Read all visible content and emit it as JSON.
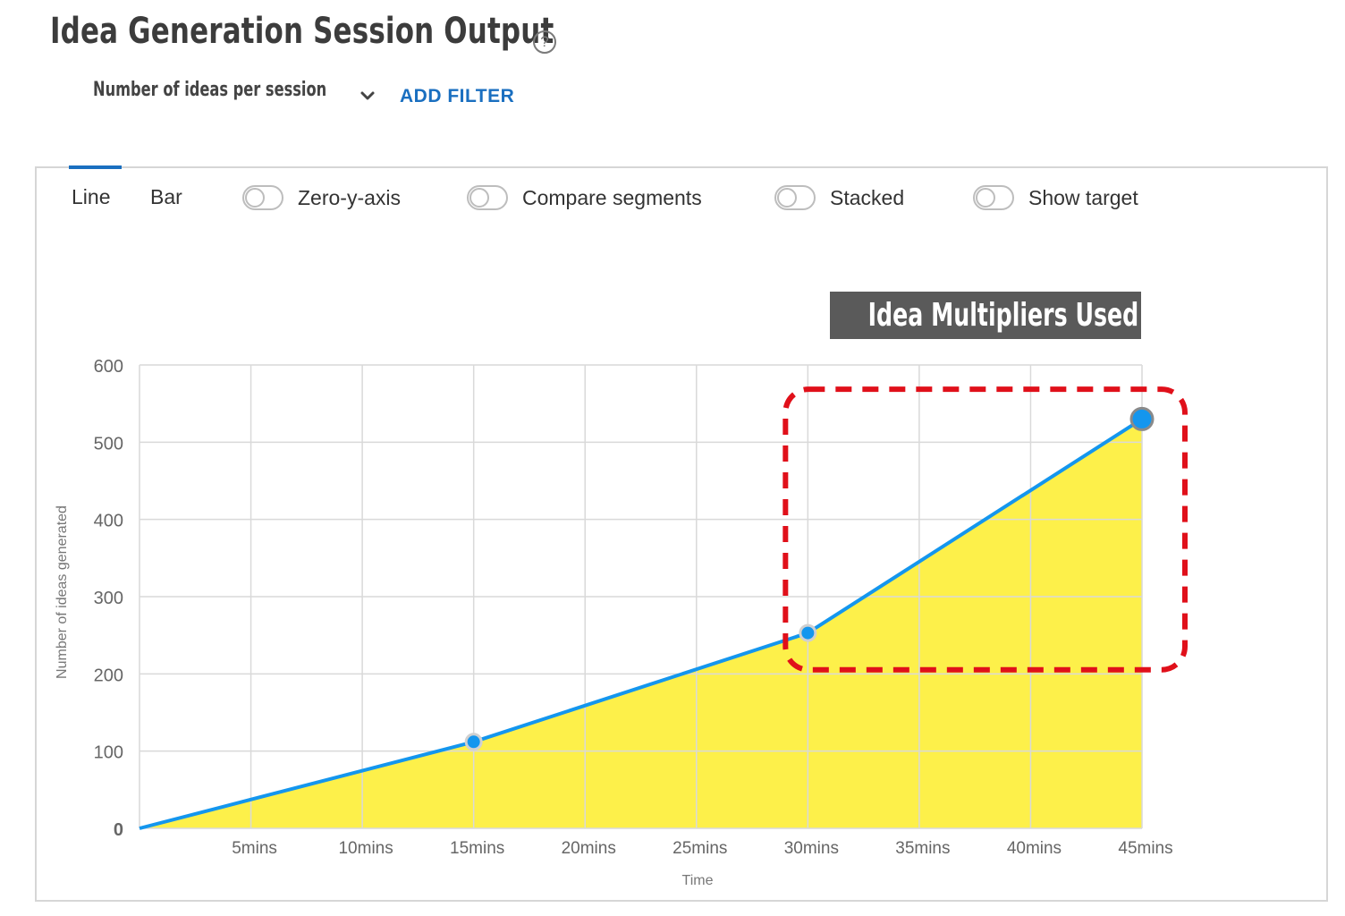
{
  "header": {
    "title": "Idea Generation Session Output",
    "help_icon": "question-circle-icon",
    "metric_label": "Number of ideas per session",
    "metric_icon": "chevron-down-icon",
    "add_filter_label": "ADD FILTER"
  },
  "toolbar": {
    "tabs": [
      {
        "label": "Line",
        "active": true
      },
      {
        "label": "Bar",
        "active": false
      }
    ],
    "toggles": [
      {
        "label": "Zero-y-axis",
        "on": false
      },
      {
        "label": "Compare segments",
        "on": false
      },
      {
        "label": "Stacked",
        "on": false
      },
      {
        "label": "Show target",
        "on": false
      }
    ]
  },
  "annotation": {
    "label": "Idea Multipliers Used",
    "highlight_color": "#e0101a"
  },
  "colors": {
    "line": "#1496ee",
    "area_fill": "#fdf04a",
    "accent": "#1a6fc0",
    "annotation_bg": "#5a5a5a"
  },
  "chart_data": {
    "type": "area",
    "title": "",
    "xlabel": "Time",
    "ylabel": "Number of ideas generated",
    "categories": [
      "5mins",
      "10mins",
      "15mins",
      "20mins",
      "25mins",
      "30mins",
      "35mins",
      "40mins",
      "45mins"
    ],
    "xlim": [
      0,
      45
    ],
    "ylim": [
      0,
      600
    ],
    "y_ticks": [
      "0",
      "100",
      "200",
      "300",
      "400",
      "500",
      "600"
    ],
    "grid": true,
    "legend": "none",
    "series": [
      {
        "x": [
          0,
          15,
          30,
          45
        ],
        "values": [
          0,
          112,
          253,
          530
        ],
        "markers": [
          false,
          true,
          true,
          true
        ]
      }
    ]
  }
}
